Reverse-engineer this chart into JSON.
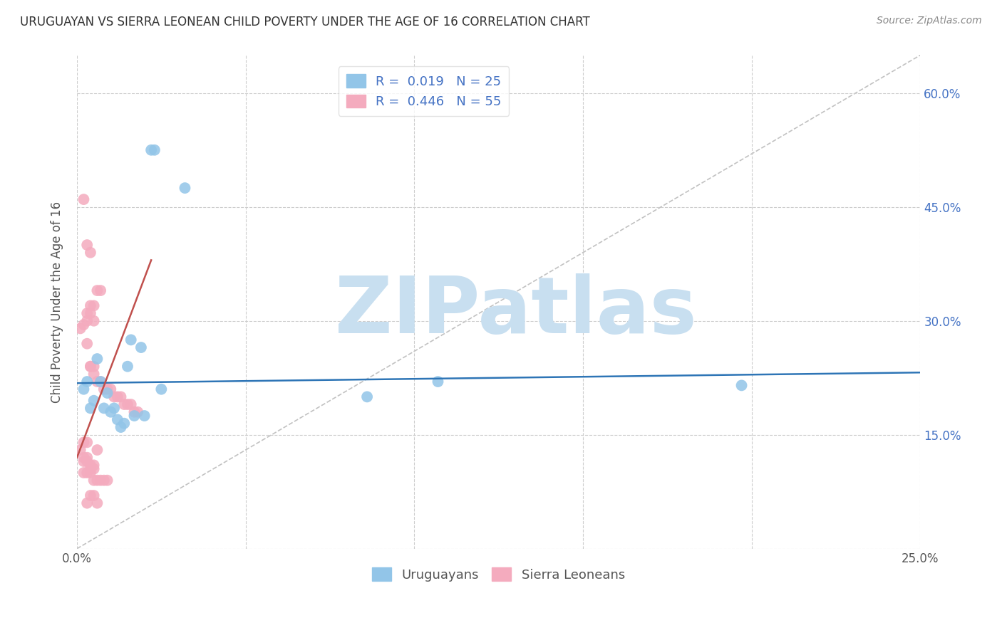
{
  "title": "URUGUAYAN VS SIERRA LEONEAN CHILD POVERTY UNDER THE AGE OF 16 CORRELATION CHART",
  "source_text": "Source: ZipAtlas.com",
  "ylabel": "Child Poverty Under the Age of 16",
  "xlim": [
    0.0,
    0.25
  ],
  "ylim": [
    0.0,
    0.65
  ],
  "xticks": [
    0.0,
    0.05,
    0.1,
    0.15,
    0.2,
    0.25
  ],
  "xticklabels": [
    "0.0%",
    "",
    "",
    "",
    "",
    "25.0%"
  ],
  "right_yticks": [
    0.15,
    0.3,
    0.45,
    0.6
  ],
  "right_yticklabels": [
    "15.0%",
    "30.0%",
    "45.0%",
    "60.0%"
  ],
  "group1_color": "#92C5E8",
  "group2_color": "#F4ABBE",
  "group1_line_color": "#2E75B6",
  "group2_line_color": "#C0504D",
  "watermark_color": "#C8DFF0",
  "background_color": "#FFFFFF",
  "grid_color": "#CCCCCC",
  "uruguayans_x": [
    0.022,
    0.023,
    0.032,
    0.107,
    0.197,
    0.086,
    0.025,
    0.003,
    0.002,
    0.005,
    0.007,
    0.009,
    0.011,
    0.016,
    0.019,
    0.006,
    0.008,
    0.015,
    0.02,
    0.012,
    0.013,
    0.004,
    0.01,
    0.014,
    0.017
  ],
  "uruguayans_y": [
    0.525,
    0.525,
    0.475,
    0.22,
    0.215,
    0.2,
    0.21,
    0.22,
    0.21,
    0.195,
    0.22,
    0.205,
    0.185,
    0.275,
    0.265,
    0.25,
    0.185,
    0.24,
    0.175,
    0.17,
    0.16,
    0.185,
    0.18,
    0.165,
    0.175
  ],
  "sierraleoneans_x": [
    0.001,
    0.002,
    0.003,
    0.004,
    0.005,
    0.006,
    0.007,
    0.008,
    0.009,
    0.01,
    0.011,
    0.012,
    0.013,
    0.014,
    0.015,
    0.016,
    0.017,
    0.018,
    0.002,
    0.003,
    0.004,
    0.005,
    0.003,
    0.004,
    0.005,
    0.003,
    0.004,
    0.005,
    0.006,
    0.007,
    0.002,
    0.003,
    0.004,
    0.005,
    0.006,
    0.003,
    0.004,
    0.002,
    0.003,
    0.004,
    0.005,
    0.006,
    0.007,
    0.008,
    0.009,
    0.002,
    0.003,
    0.004,
    0.005,
    0.006,
    0.001,
    0.002,
    0.003,
    0.004,
    0.005
  ],
  "sierraleoneans_y": [
    0.29,
    0.295,
    0.27,
    0.24,
    0.23,
    0.22,
    0.22,
    0.21,
    0.21,
    0.21,
    0.2,
    0.2,
    0.2,
    0.19,
    0.19,
    0.19,
    0.18,
    0.18,
    0.46,
    0.4,
    0.32,
    0.32,
    0.31,
    0.31,
    0.3,
    0.3,
    0.24,
    0.24,
    0.34,
    0.34,
    0.14,
    0.14,
    0.07,
    0.07,
    0.06,
    0.06,
    0.39,
    0.1,
    0.1,
    0.1,
    0.09,
    0.09,
    0.09,
    0.09,
    0.09,
    0.115,
    0.115,
    0.105,
    0.105,
    0.13,
    0.13,
    0.12,
    0.12,
    0.11,
    0.11
  ],
  "blue_line_x": [
    0.0,
    0.25
  ],
  "blue_line_y": [
    0.218,
    0.232
  ],
  "pink_line_x": [
    0.0,
    0.022
  ],
  "pink_line_y": [
    0.12,
    0.38
  ]
}
